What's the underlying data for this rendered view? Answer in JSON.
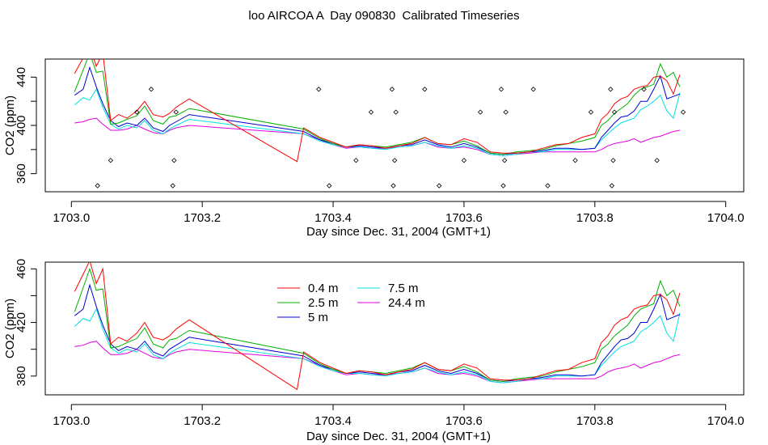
{
  "title": "loo AIRCOA A  Day 090830  Calibrated Timeseries",
  "chart_data": [
    {
      "type": "line",
      "xlabel": "Day since Dec. 31, 2004 (GMT+1)",
      "ylabel": "CO2 (ppm)",
      "xlim": [
        1703.0,
        1704.0
      ],
      "ylim": [
        345,
        455
      ],
      "x_ticks": [
        "1703.0",
        "1703.2",
        "1703.4",
        "1703.6",
        "1703.8",
        "1704.0"
      ],
      "y_ticks": [
        "360",
        "400",
        "440"
      ],
      "legend": null,
      "grid": false,
      "series": [
        {
          "name": "0.4 m",
          "color": "#ff0000",
          "x": [
            1703.005,
            1703.018,
            1703.028,
            1703.038,
            1703.048,
            1703.06,
            1703.072,
            1703.085,
            1703.1,
            1703.112,
            1703.125,
            1703.14,
            1703.15,
            1703.16,
            1703.18,
            1703.345,
            1703.355,
            1703.38,
            1703.4,
            1703.42,
            1703.44,
            1703.46,
            1703.48,
            1703.5,
            1703.52,
            1703.54,
            1703.56,
            1703.58,
            1703.6,
            1703.62,
            1703.64,
            1703.66,
            1703.68,
            1703.7,
            1703.72,
            1703.74,
            1703.76,
            1703.78,
            1703.8,
            1703.81,
            1703.82,
            1703.83,
            1703.84,
            1703.85,
            1703.86,
            1703.87,
            1703.88,
            1703.89,
            1703.9,
            1703.91,
            1703.92,
            1703.93
          ],
          "values": [
            443,
            456,
            466,
            449,
            460,
            404,
            409,
            406,
            412,
            420,
            409,
            407,
            410,
            415,
            422,
            370,
            398,
            390,
            386,
            382,
            384,
            383,
            381,
            383,
            385,
            390,
            385,
            384,
            389,
            386,
            378,
            377,
            377,
            378,
            381,
            384,
            385,
            390,
            393,
            405,
            410,
            418,
            422,
            424,
            430,
            432,
            433,
            440,
            441,
            437,
            426,
            442
          ]
        },
        {
          "name": "2.5 m",
          "color": "#00b000",
          "x": [
            1703.005,
            1703.018,
            1703.028,
            1703.038,
            1703.048,
            1703.06,
            1703.072,
            1703.085,
            1703.1,
            1703.112,
            1703.125,
            1703.14,
            1703.15,
            1703.16,
            1703.18,
            1703.355,
            1703.38,
            1703.4,
            1703.42,
            1703.44,
            1703.46,
            1703.48,
            1703.5,
            1703.52,
            1703.54,
            1703.56,
            1703.58,
            1703.6,
            1703.62,
            1703.64,
            1703.66,
            1703.68,
            1703.7,
            1703.72,
            1703.74,
            1703.76,
            1703.78,
            1703.8,
            1703.81,
            1703.82,
            1703.83,
            1703.84,
            1703.85,
            1703.86,
            1703.87,
            1703.88,
            1703.89,
            1703.9,
            1703.91,
            1703.92,
            1703.93
          ],
          "values": [
            428,
            446,
            460,
            444,
            445,
            401,
            402,
            405,
            408,
            416,
            404,
            401,
            407,
            408,
            414,
            397,
            389,
            385,
            382,
            384,
            383,
            382,
            384,
            386,
            390,
            385,
            384,
            387,
            383,
            377,
            376,
            378,
            379,
            380,
            383,
            385,
            387,
            390,
            400,
            404,
            410,
            414,
            418,
            425,
            430,
            432,
            434,
            451,
            440,
            444,
            432
          ]
        },
        {
          "name": "5 m",
          "color": "#0000d0",
          "x": [
            1703.005,
            1703.018,
            1703.028,
            1703.038,
            1703.048,
            1703.06,
            1703.072,
            1703.085,
            1703.1,
            1703.112,
            1703.125,
            1703.14,
            1703.15,
            1703.16,
            1703.18,
            1703.355,
            1703.38,
            1703.4,
            1703.42,
            1703.44,
            1703.46,
            1703.48,
            1703.5,
            1703.52,
            1703.54,
            1703.56,
            1703.58,
            1703.6,
            1703.62,
            1703.64,
            1703.66,
            1703.68,
            1703.7,
            1703.72,
            1703.74,
            1703.76,
            1703.78,
            1703.8,
            1703.81,
            1703.82,
            1703.83,
            1703.84,
            1703.85,
            1703.86,
            1703.87,
            1703.88,
            1703.89,
            1703.9,
            1703.91,
            1703.92,
            1703.93
          ],
          "values": [
            425,
            430,
            448,
            432,
            418,
            404,
            399,
            402,
            400,
            406,
            398,
            395,
            400,
            403,
            409,
            395,
            388,
            385,
            382,
            383,
            382,
            381,
            383,
            384,
            388,
            384,
            382,
            385,
            382,
            377,
            376,
            377,
            378,
            379,
            381,
            381,
            380,
            381,
            390,
            396,
            402,
            407,
            408,
            412,
            420,
            420,
            430,
            441,
            422,
            424,
            426
          ]
        },
        {
          "name": "7.5 m",
          "color": "#00e0e0",
          "x": [
            1703.005,
            1703.018,
            1703.028,
            1703.038,
            1703.048,
            1703.06,
            1703.072,
            1703.085,
            1703.1,
            1703.112,
            1703.125,
            1703.14,
            1703.15,
            1703.16,
            1703.18,
            1703.355,
            1703.38,
            1703.4,
            1703.42,
            1703.44,
            1703.46,
            1703.48,
            1703.5,
            1703.52,
            1703.54,
            1703.56,
            1703.58,
            1703.6,
            1703.62,
            1703.64,
            1703.66,
            1703.68,
            1703.7,
            1703.72,
            1703.74,
            1703.76,
            1703.78,
            1703.8,
            1703.81,
            1703.82,
            1703.83,
            1703.84,
            1703.85,
            1703.86,
            1703.87,
            1703.88,
            1703.89,
            1703.9,
            1703.91,
            1703.92,
            1703.93
          ],
          "values": [
            417,
            423,
            421,
            430,
            415,
            401,
            397,
            400,
            398,
            404,
            396,
            393,
            397,
            400,
            405,
            393,
            387,
            384,
            382,
            382,
            381,
            380,
            382,
            383,
            386,
            383,
            381,
            383,
            381,
            376,
            375,
            376,
            378,
            378,
            380,
            380,
            380,
            381,
            388,
            393,
            398,
            402,
            404,
            406,
            413,
            416,
            420,
            425,
            412,
            406,
            427
          ]
        },
        {
          "name": "24.4 m",
          "color": "#e000e0",
          "x": [
            1703.005,
            1703.018,
            1703.028,
            1703.038,
            1703.048,
            1703.06,
            1703.072,
            1703.085,
            1703.1,
            1703.112,
            1703.125,
            1703.14,
            1703.15,
            1703.16,
            1703.18,
            1703.355,
            1703.38,
            1703.4,
            1703.42,
            1703.44,
            1703.46,
            1703.48,
            1703.5,
            1703.52,
            1703.54,
            1703.56,
            1703.58,
            1703.6,
            1703.62,
            1703.64,
            1703.66,
            1703.68,
            1703.7,
            1703.72,
            1703.74,
            1703.76,
            1703.78,
            1703.8,
            1703.81,
            1703.82,
            1703.83,
            1703.84,
            1703.85,
            1703.86,
            1703.87,
            1703.88,
            1703.89,
            1703.9,
            1703.91,
            1703.92,
            1703.93
          ],
          "values": [
            402,
            403,
            405,
            406,
            401,
            396,
            396,
            397,
            400,
            397,
            394,
            393,
            396,
            398,
            400,
            393,
            388,
            384,
            381,
            382,
            381,
            381,
            382,
            383,
            386,
            382,
            381,
            382,
            380,
            376,
            375,
            376,
            377,
            378,
            378,
            378,
            378,
            378,
            380,
            383,
            385,
            386,
            387,
            389,
            386,
            388,
            390,
            391,
            393,
            395,
            396
          ]
        }
      ],
      "scatter": {
        "marker": "open-diamond",
        "x": [
          1703.04,
          1703.06,
          1703.1,
          1703.122,
          1703.155,
          1703.157,
          1703.16,
          1703.378,
          1703.394,
          1703.435,
          1703.458,
          1703.49,
          1703.492,
          1703.494,
          1703.496,
          1703.54,
          1703.562,
          1703.6,
          1703.625,
          1703.657,
          1703.66,
          1703.662,
          1703.664,
          1703.706,
          1703.728,
          1703.77,
          1703.794,
          1703.824,
          1703.826,
          1703.828,
          1703.83,
          1703.875,
          1703.895,
          1703.935
        ],
        "values": [
          350,
          371,
          411,
          430,
          350,
          371,
          411,
          430,
          350,
          371,
          411,
          430,
          350,
          371,
          411,
          430,
          350,
          371,
          411,
          430,
          350,
          371,
          411,
          430,
          350,
          371,
          411,
          430,
          350,
          371,
          411,
          430,
          371,
          411
        ]
      }
    },
    {
      "type": "line",
      "xlabel": "Day since Dec. 31, 2004 (GMT+1)",
      "ylabel": "CO2 (ppm)",
      "xlim": [
        1703.0,
        1704.0
      ],
      "ylim": [
        366,
        465
      ],
      "x_ticks": [
        "1703.0",
        "1703.2",
        "1703.4",
        "1703.6",
        "1703.8",
        "1704.0"
      ],
      "y_ticks": [
        "380",
        "420",
        "460"
      ],
      "legend": "top-center",
      "grid": false,
      "series_ref": "same as upper panel"
    }
  ]
}
